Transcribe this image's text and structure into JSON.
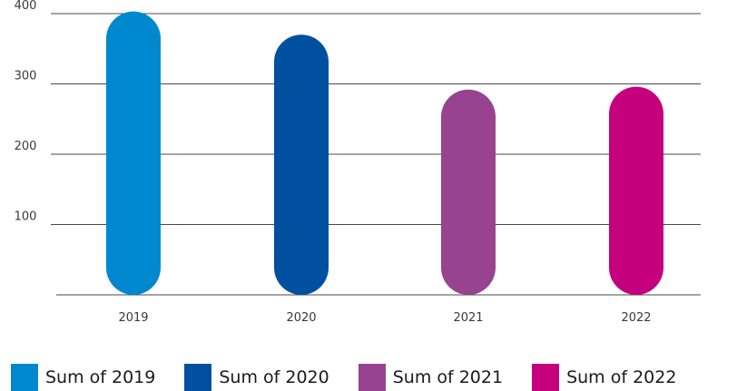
{
  "chart_data": {
    "type": "bar",
    "categories": [
      "2019",
      "2020",
      "2021",
      "2022"
    ],
    "series": [
      {
        "name": "Sum of 2019",
        "values": [
          403,
          0,
          0,
          0
        ],
        "color": "#0088cf"
      },
      {
        "name": "Sum of 2020",
        "values": [
          0,
          370,
          0,
          0
        ],
        "color": "#0050a0"
      },
      {
        "name": "Sum of 2021",
        "values": [
          0,
          0,
          292,
          0
        ],
        "color": "#974390"
      },
      {
        "name": "Sum of 2022",
        "values": [
          0,
          0,
          0,
          296
        ],
        "color": "#c5007d"
      }
    ],
    "values": [
      403,
      370,
      292,
      296
    ],
    "colors": [
      "#0088cf",
      "#0050a0",
      "#974390",
      "#c5007d"
    ],
    "yticks": [
      100,
      200,
      300,
      400
    ],
    "ylim": [
      0,
      400
    ],
    "grid": true,
    "legend_position": "bottom",
    "bar_style": "rounded-pill"
  },
  "legend": {
    "items": [
      {
        "label": "Sum of 2019",
        "color": "#0088cf"
      },
      {
        "label": "Sum of 2020",
        "color": "#0050a0"
      },
      {
        "label": "Sum of 2021",
        "color": "#974390"
      },
      {
        "label": "Sum of 2022",
        "color": "#c5007d"
      }
    ]
  }
}
